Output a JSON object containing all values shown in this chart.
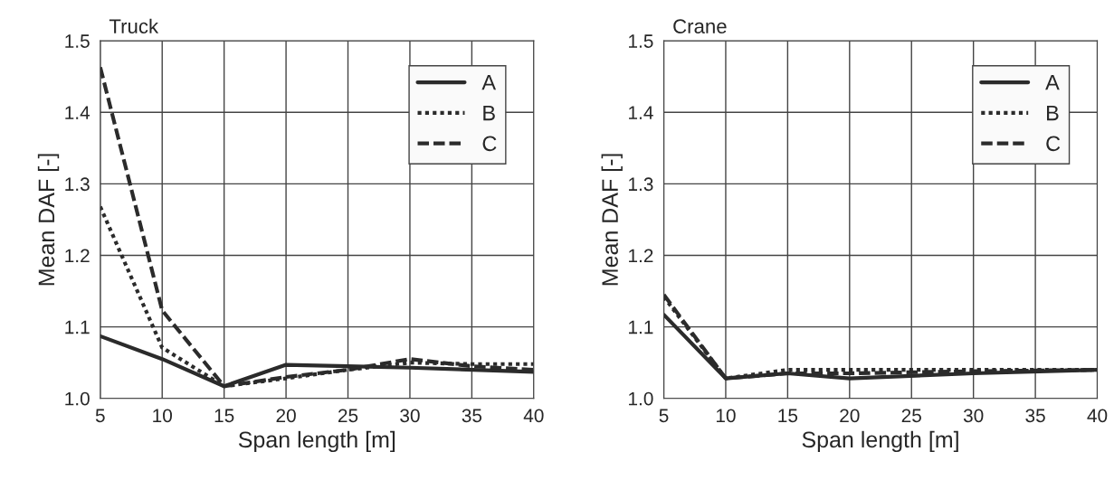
{
  "chart_data": [
    {
      "type": "line",
      "title": "Truck",
      "xlabel": "Span length [m]",
      "ylabel": "Mean DAF [-]",
      "xlim": [
        5,
        40
      ],
      "xticks": [
        5,
        10,
        15,
        20,
        25,
        30,
        35,
        40
      ],
      "ylim": [
        1.0,
        1.5
      ],
      "yticks": [
        {
          "value": 1,
          "label": "1.0"
        },
        1.1,
        1.2,
        1.3,
        1.4,
        1.5
      ],
      "grid": true,
      "legend": "top right",
      "series": [
        {
          "name": "A",
          "color": "#2b2b2b",
          "line_style": "solid",
          "x": [
            5,
            10,
            15,
            20,
            25,
            30,
            40
          ],
          "values": [
            1.087,
            1.055,
            1.017,
            1.047,
            1.045,
            1.043,
            1.037
          ]
        },
        {
          "name": "B",
          "color": "#2b2b2b",
          "line_style": "dotted",
          "x": [
            5,
            10,
            15,
            20,
            25,
            30,
            35,
            40
          ],
          "values": [
            1.268,
            1.071,
            1.017,
            1.028,
            1.04,
            1.05,
            1.048,
            1.048
          ]
        },
        {
          "name": "C",
          "color": "#2b2b2b",
          "line_style": "dashed",
          "x": [
            5,
            10,
            15,
            20,
            25,
            30,
            35,
            40
          ],
          "values": [
            1.463,
            1.123,
            1.017,
            1.03,
            1.04,
            1.055,
            1.045,
            1.04
          ]
        }
      ]
    },
    {
      "type": "line",
      "title": "Crane",
      "xlabel": "Span length [m]",
      "ylabel": "Mean DAF [-]",
      "xlim": [
        5,
        40
      ],
      "xticks": [
        5,
        10,
        15,
        20,
        25,
        30,
        35,
        40
      ],
      "ylim": [
        1.0,
        1.5
      ],
      "yticks": [
        {
          "value": 1,
          "label": "1.0"
        },
        1.1,
        1.2,
        1.3,
        1.4,
        1.5
      ],
      "grid": true,
      "legend": "top right",
      "series": [
        {
          "name": "A",
          "color": "#2b2b2b",
          "line_style": "solid",
          "x": [
            5,
            10,
            15,
            20,
            30,
            40
          ],
          "values": [
            1.117,
            1.028,
            1.035,
            1.028,
            1.035,
            1.04
          ]
        },
        {
          "name": "B",
          "color": "#2b2b2b",
          "line_style": "dotted",
          "x": [
            5,
            10,
            15,
            20,
            30,
            40
          ],
          "values": [
            1.142,
            1.028,
            1.04,
            1.04,
            1.04,
            1.04
          ]
        },
        {
          "name": "C",
          "color": "#2b2b2b",
          "line_style": "dashed",
          "x": [
            5,
            10,
            15,
            20,
            30,
            40
          ],
          "values": [
            1.145,
            1.028,
            1.035,
            1.035,
            1.038,
            1.04
          ]
        }
      ]
    }
  ]
}
